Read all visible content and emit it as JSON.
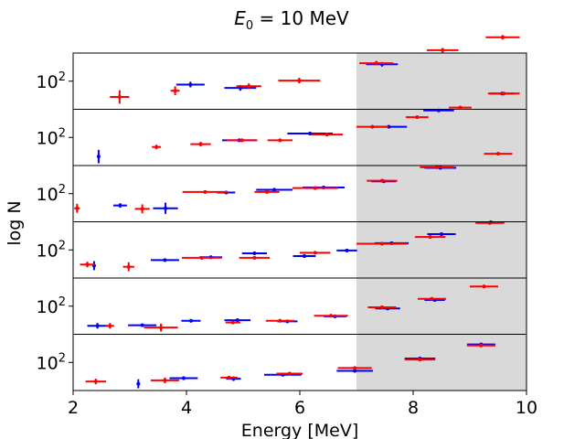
{
  "chart_data": {
    "type": "scatter",
    "title_symbol": "E",
    "title_subscript": "0",
    "title_rest": " =  10 MeV",
    "xlabel": "Energy [MeV]",
    "ylabel": "log N",
    "xlim": [
      2,
      10
    ],
    "xticks": [
      "2",
      "4",
      "6",
      "8",
      "10"
    ],
    "ytick_base": "10",
    "ytick_exp": "2",
    "shaded_region": [
      7,
      10
    ],
    "colors": {
      "series_a": "#0000ff",
      "series_b": "#ff0000",
      "shade": "#d9d9d9"
    },
    "panels": [
      {
        "series": [
          {
            "name": "blue",
            "points": [
              {
                "x": 4.07,
                "y": 0.44,
                "xerr": 0.25,
                "yerr": 0.05
              },
              {
                "x": 4.95,
                "y": 0.38,
                "xerr": 0.28,
                "yerr": 0.05
              },
              {
                "x": 7.45,
                "y": 0.8,
                "xerr": 0.28,
                "yerr": 0.04
              }
            ]
          },
          {
            "name": "red",
            "points": [
              {
                "x": 2.82,
                "y": 0.22,
                "xerr": 0.17,
                "yerr": 0.12
              },
              {
                "x": 3.8,
                "y": 0.33,
                "xerr": 0.08,
                "yerr": 0.08
              },
              {
                "x": 5.1,
                "y": 0.41,
                "xerr": 0.22,
                "yerr": 0.05
              },
              {
                "x": 5.99,
                "y": 0.51,
                "xerr": 0.37,
                "yerr": 0.05
              },
              {
                "x": 7.35,
                "y": 0.82,
                "xerr": 0.3,
                "yerr": 0.04
              },
              {
                "x": 8.52,
                "y": 1.05,
                "xerr": 0.28,
                "yerr": 0.04
              },
              {
                "x": 9.58,
                "y": 1.28,
                "xerr": 0.3,
                "yerr": 0.04
              }
            ]
          }
        ]
      },
      {
        "series": [
          {
            "name": "blue",
            "points": [
              {
                "x": 2.45,
                "y": 0.16,
                "xerr": 0.0,
                "yerr": 0.12
              },
              {
                "x": 4.93,
                "y": 0.45,
                "xerr": 0.3,
                "yerr": 0.03
              },
              {
                "x": 6.18,
                "y": 0.57,
                "xerr": 0.4,
                "yerr": 0.03
              },
              {
                "x": 7.57,
                "y": 0.69,
                "xerr": 0.32,
                "yerr": 0.03
              },
              {
                "x": 8.45,
                "y": 0.98,
                "xerr": 0.27,
                "yerr": 0.03
              },
              {
                "x": 9.57,
                "y": 1.28,
                "xerr": 0.22,
                "yerr": 0.03
              }
            ]
          },
          {
            "name": "red",
            "points": [
              {
                "x": 3.47,
                "y": 0.33,
                "xerr": 0.08,
                "yerr": 0.04
              },
              {
                "x": 4.25,
                "y": 0.38,
                "xerr": 0.18,
                "yerr": 0.04
              },
              {
                "x": 4.98,
                "y": 0.45,
                "xerr": 0.27,
                "yerr": 0.03
              },
              {
                "x": 5.65,
                "y": 0.45,
                "xerr": 0.22,
                "yerr": 0.03
              },
              {
                "x": 6.48,
                "y": 0.55,
                "xerr": 0.28,
                "yerr": 0.03
              },
              {
                "x": 7.28,
                "y": 0.69,
                "xerr": 0.28,
                "yerr": 0.03
              },
              {
                "x": 8.07,
                "y": 0.86,
                "xerr": 0.2,
                "yerr": 0.03
              },
              {
                "x": 8.83,
                "y": 1.03,
                "xerr": 0.2,
                "yerr": 0.03
              },
              {
                "x": 9.6,
                "y": 1.28,
                "xerr": 0.28,
                "yerr": 0.03
              }
            ]
          }
        ]
      },
      {
        "series": [
          {
            "name": "blue",
            "points": [
              {
                "x": 2.83,
                "y": 0.29,
                "xerr": 0.12,
                "yerr": 0.04
              },
              {
                "x": 3.63,
                "y": 0.24,
                "xerr": 0.22,
                "yerr": 0.1
              },
              {
                "x": 4.7,
                "y": 0.52,
                "xerr": 0.16,
                "yerr": 0.03
              },
              {
                "x": 5.55,
                "y": 0.57,
                "xerr": 0.32,
                "yerr": 0.03
              },
              {
                "x": 6.42,
                "y": 0.61,
                "xerr": 0.37,
                "yerr": 0.03
              },
              {
                "x": 7.48,
                "y": 0.72,
                "xerr": 0.22,
                "yerr": 0.03
              },
              {
                "x": 8.48,
                "y": 0.96,
                "xerr": 0.28,
                "yerr": 0.03
              }
            ]
          },
          {
            "name": "red",
            "points": [
              {
                "x": 2.07,
                "y": 0.24,
                "xerr": 0.05,
                "yerr": 0.08
              },
              {
                "x": 3.22,
                "y": 0.23,
                "xerr": 0.13,
                "yerr": 0.08
              },
              {
                "x": 4.33,
                "y": 0.53,
                "xerr": 0.4,
                "yerr": 0.03
              },
              {
                "x": 5.42,
                "y": 0.53,
                "xerr": 0.22,
                "yerr": 0.03
              },
              {
                "x": 6.27,
                "y": 0.6,
                "xerr": 0.4,
                "yerr": 0.03
              },
              {
                "x": 7.45,
                "y": 0.73,
                "xerr": 0.27,
                "yerr": 0.03
              },
              {
                "x": 8.42,
                "y": 0.97,
                "xerr": 0.3,
                "yerr": 0.03
              },
              {
                "x": 9.5,
                "y": 1.21,
                "xerr": 0.25,
                "yerr": 0.03
              }
            ]
          }
        ]
      },
      {
        "series": [
          {
            "name": "blue",
            "points": [
              {
                "x": 2.37,
                "y": 0.22,
                "xerr": 0.0,
                "yerr": 0.08
              },
              {
                "x": 3.62,
                "y": 0.32,
                "xerr": 0.25,
                "yerr": 0.03
              },
              {
                "x": 4.43,
                "y": 0.37,
                "xerr": 0.2,
                "yerr": 0.03
              },
              {
                "x": 5.2,
                "y": 0.44,
                "xerr": 0.22,
                "yerr": 0.03
              },
              {
                "x": 6.08,
                "y": 0.39,
                "xerr": 0.2,
                "yerr": 0.03
              },
              {
                "x": 6.83,
                "y": 0.49,
                "xerr": 0.18,
                "yerr": 0.03
              },
              {
                "x": 7.62,
                "y": 0.62,
                "xerr": 0.3,
                "yerr": 0.03
              },
              {
                "x": 8.5,
                "y": 0.78,
                "xerr": 0.25,
                "yerr": 0.03
              },
              {
                "x": 9.37,
                "y": 0.99,
                "xerr": 0.24,
                "yerr": 0.03
              }
            ]
          },
          {
            "name": "red",
            "points": [
              {
                "x": 2.25,
                "y": 0.24,
                "xerr": 0.13,
                "yerr": 0.05
              },
              {
                "x": 2.98,
                "y": 0.2,
                "xerr": 0.1,
                "yerr": 0.08
              },
              {
                "x": 4.27,
                "y": 0.36,
                "xerr": 0.35,
                "yerr": 0.03
              },
              {
                "x": 5.2,
                "y": 0.36,
                "xerr": 0.27,
                "yerr": 0.03
              },
              {
                "x": 6.27,
                "y": 0.45,
                "xerr": 0.27,
                "yerr": 0.03
              },
              {
                "x": 7.45,
                "y": 0.61,
                "xerr": 0.45,
                "yerr": 0.03
              },
              {
                "x": 8.3,
                "y": 0.73,
                "xerr": 0.27,
                "yerr": 0.03
              },
              {
                "x": 9.35,
                "y": 0.98,
                "xerr": 0.25,
                "yerr": 0.03
              }
            ]
          }
        ]
      },
      {
        "series": [
          {
            "name": "blue",
            "points": [
              {
                "x": 2.43,
                "y": 0.15,
                "xerr": 0.18,
                "yerr": 0.05
              },
              {
                "x": 3.22,
                "y": 0.16,
                "xerr": 0.25,
                "yerr": 0.03
              },
              {
                "x": 4.08,
                "y": 0.24,
                "xerr": 0.17,
                "yerr": 0.03
              },
              {
                "x": 4.9,
                "y": 0.25,
                "xerr": 0.23,
                "yerr": 0.03
              },
              {
                "x": 5.78,
                "y": 0.23,
                "xerr": 0.18,
                "yerr": 0.03
              },
              {
                "x": 6.62,
                "y": 0.32,
                "xerr": 0.2,
                "yerr": 0.03
              },
              {
                "x": 7.55,
                "y": 0.46,
                "xerr": 0.22,
                "yerr": 0.03
              },
              {
                "x": 8.38,
                "y": 0.61,
                "xerr": 0.18,
                "yerr": 0.03
              }
            ]
          },
          {
            "name": "red",
            "points": [
              {
                "x": 2.65,
                "y": 0.15,
                "xerr": 0.07,
                "yerr": 0.05
              },
              {
                "x": 3.55,
                "y": 0.12,
                "xerr": 0.3,
                "yerr": 0.07
              },
              {
                "x": 4.82,
                "y": 0.21,
                "xerr": 0.13,
                "yerr": 0.03
              },
              {
                "x": 5.65,
                "y": 0.24,
                "xerr": 0.25,
                "yerr": 0.03
              },
              {
                "x": 6.55,
                "y": 0.33,
                "xerr": 0.3,
                "yerr": 0.03
              },
              {
                "x": 7.45,
                "y": 0.48,
                "xerr": 0.25,
                "yerr": 0.03
              },
              {
                "x": 8.33,
                "y": 0.63,
                "xerr": 0.25,
                "yerr": 0.03
              },
              {
                "x": 9.25,
                "y": 0.85,
                "xerr": 0.25,
                "yerr": 0.03
              }
            ]
          }
        ]
      },
      {
        "series": [
          {
            "name": "blue",
            "points": [
              {
                "x": 3.15,
                "y": 0.12,
                "xerr": 0.0,
                "yerr": 0.08
              },
              {
                "x": 3.95,
                "y": 0.22,
                "xerr": 0.25,
                "yerr": 0.03
              },
              {
                "x": 4.83,
                "y": 0.21,
                "xerr": 0.13,
                "yerr": 0.04
              },
              {
                "x": 5.7,
                "y": 0.28,
                "xerr": 0.33,
                "yerr": 0.03
              },
              {
                "x": 6.97,
                "y": 0.35,
                "xerr": 0.32,
                "yerr": 0.03
              },
              {
                "x": 8.12,
                "y": 0.57,
                "xerr": 0.27,
                "yerr": 0.03
              },
              {
                "x": 9.2,
                "y": 0.82,
                "xerr": 0.25,
                "yerr": 0.03
              }
            ]
          },
          {
            "name": "red",
            "points": [
              {
                "x": 2.4,
                "y": 0.16,
                "xerr": 0.18,
                "yerr": 0.05
              },
              {
                "x": 3.62,
                "y": 0.18,
                "xerr": 0.25,
                "yerr": 0.05
              },
              {
                "x": 4.75,
                "y": 0.23,
                "xerr": 0.15,
                "yerr": 0.03
              },
              {
                "x": 5.82,
                "y": 0.3,
                "xerr": 0.23,
                "yerr": 0.03
              },
              {
                "x": 6.97,
                "y": 0.4,
                "xerr": 0.3,
                "yerr": 0.03
              },
              {
                "x": 8.12,
                "y": 0.55,
                "xerr": 0.27,
                "yerr": 0.03
              },
              {
                "x": 9.2,
                "y": 0.8,
                "xerr": 0.25,
                "yerr": 0.03
              }
            ]
          }
        ]
      }
    ]
  }
}
